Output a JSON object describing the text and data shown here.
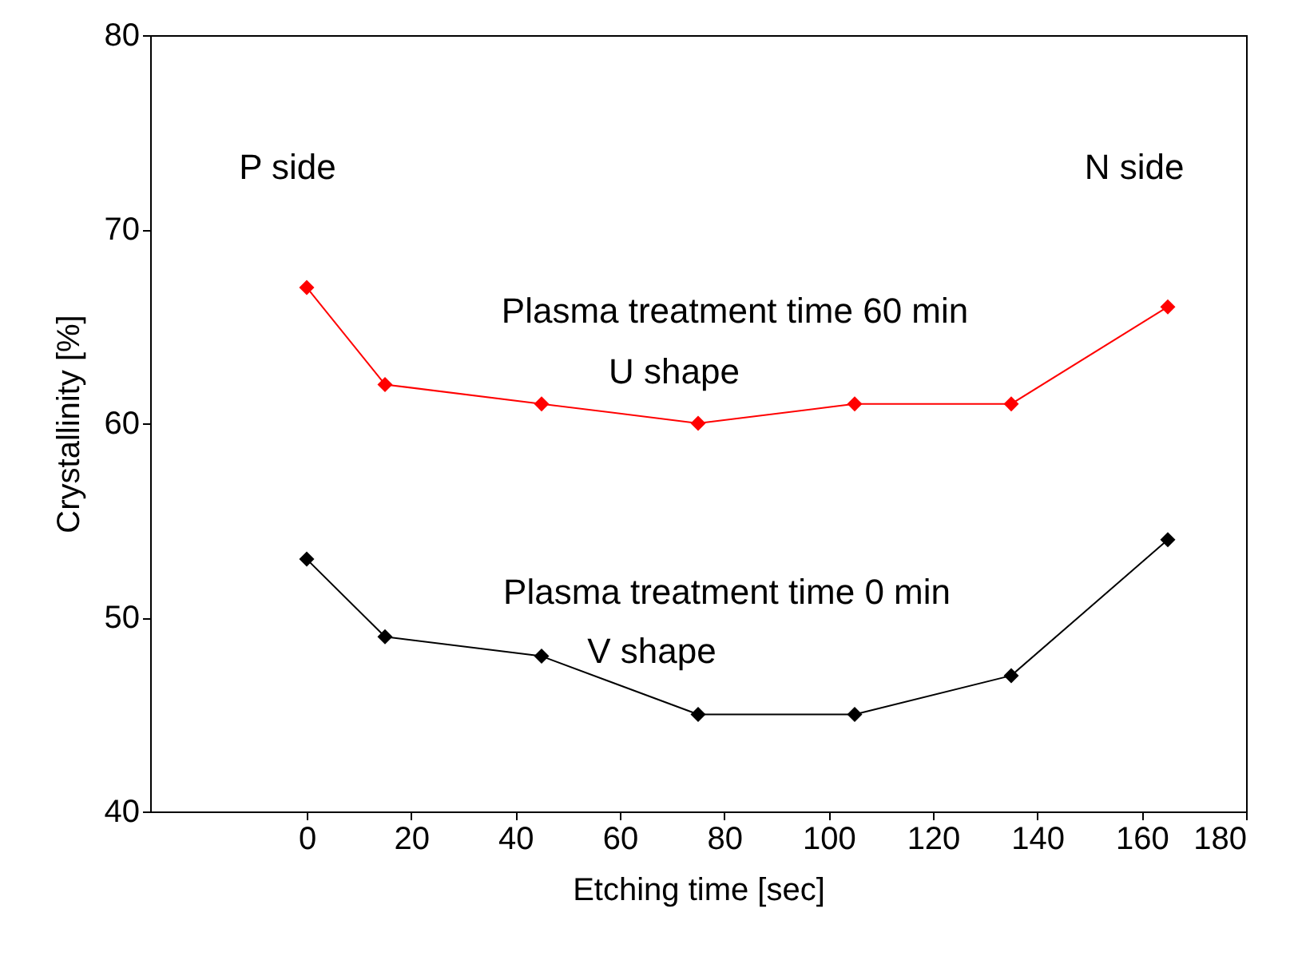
{
  "chart_data": {
    "type": "line",
    "xlabel": "Etching time [sec]",
    "ylabel": "Crystallinity [%]",
    "x": [
      0,
      15,
      45,
      75,
      105,
      135,
      165
    ],
    "series": [
      {
        "name": "Plasma treatment time 60 min",
        "color": "#ff0000",
        "values": [
          67,
          62,
          61,
          60,
          61,
          61,
          66
        ]
      },
      {
        "name": "Plasma treatment time 0 min",
        "color": "#000000",
        "values": [
          53,
          49,
          48,
          45,
          45,
          47,
          54
        ]
      }
    ],
    "annotations": [
      "P side",
      "N side",
      "U shape",
      "V shape"
    ],
    "xlim": [
      -30,
      180
    ],
    "xticks": [
      0,
      20,
      40,
      60,
      80,
      100,
      120,
      140,
      160,
      180
    ],
    "ylim": [
      40,
      80
    ],
    "yticks": [
      40,
      50,
      60,
      70,
      80
    ],
    "grid": false,
    "marker": "diamond",
    "line_style": "solid"
  }
}
